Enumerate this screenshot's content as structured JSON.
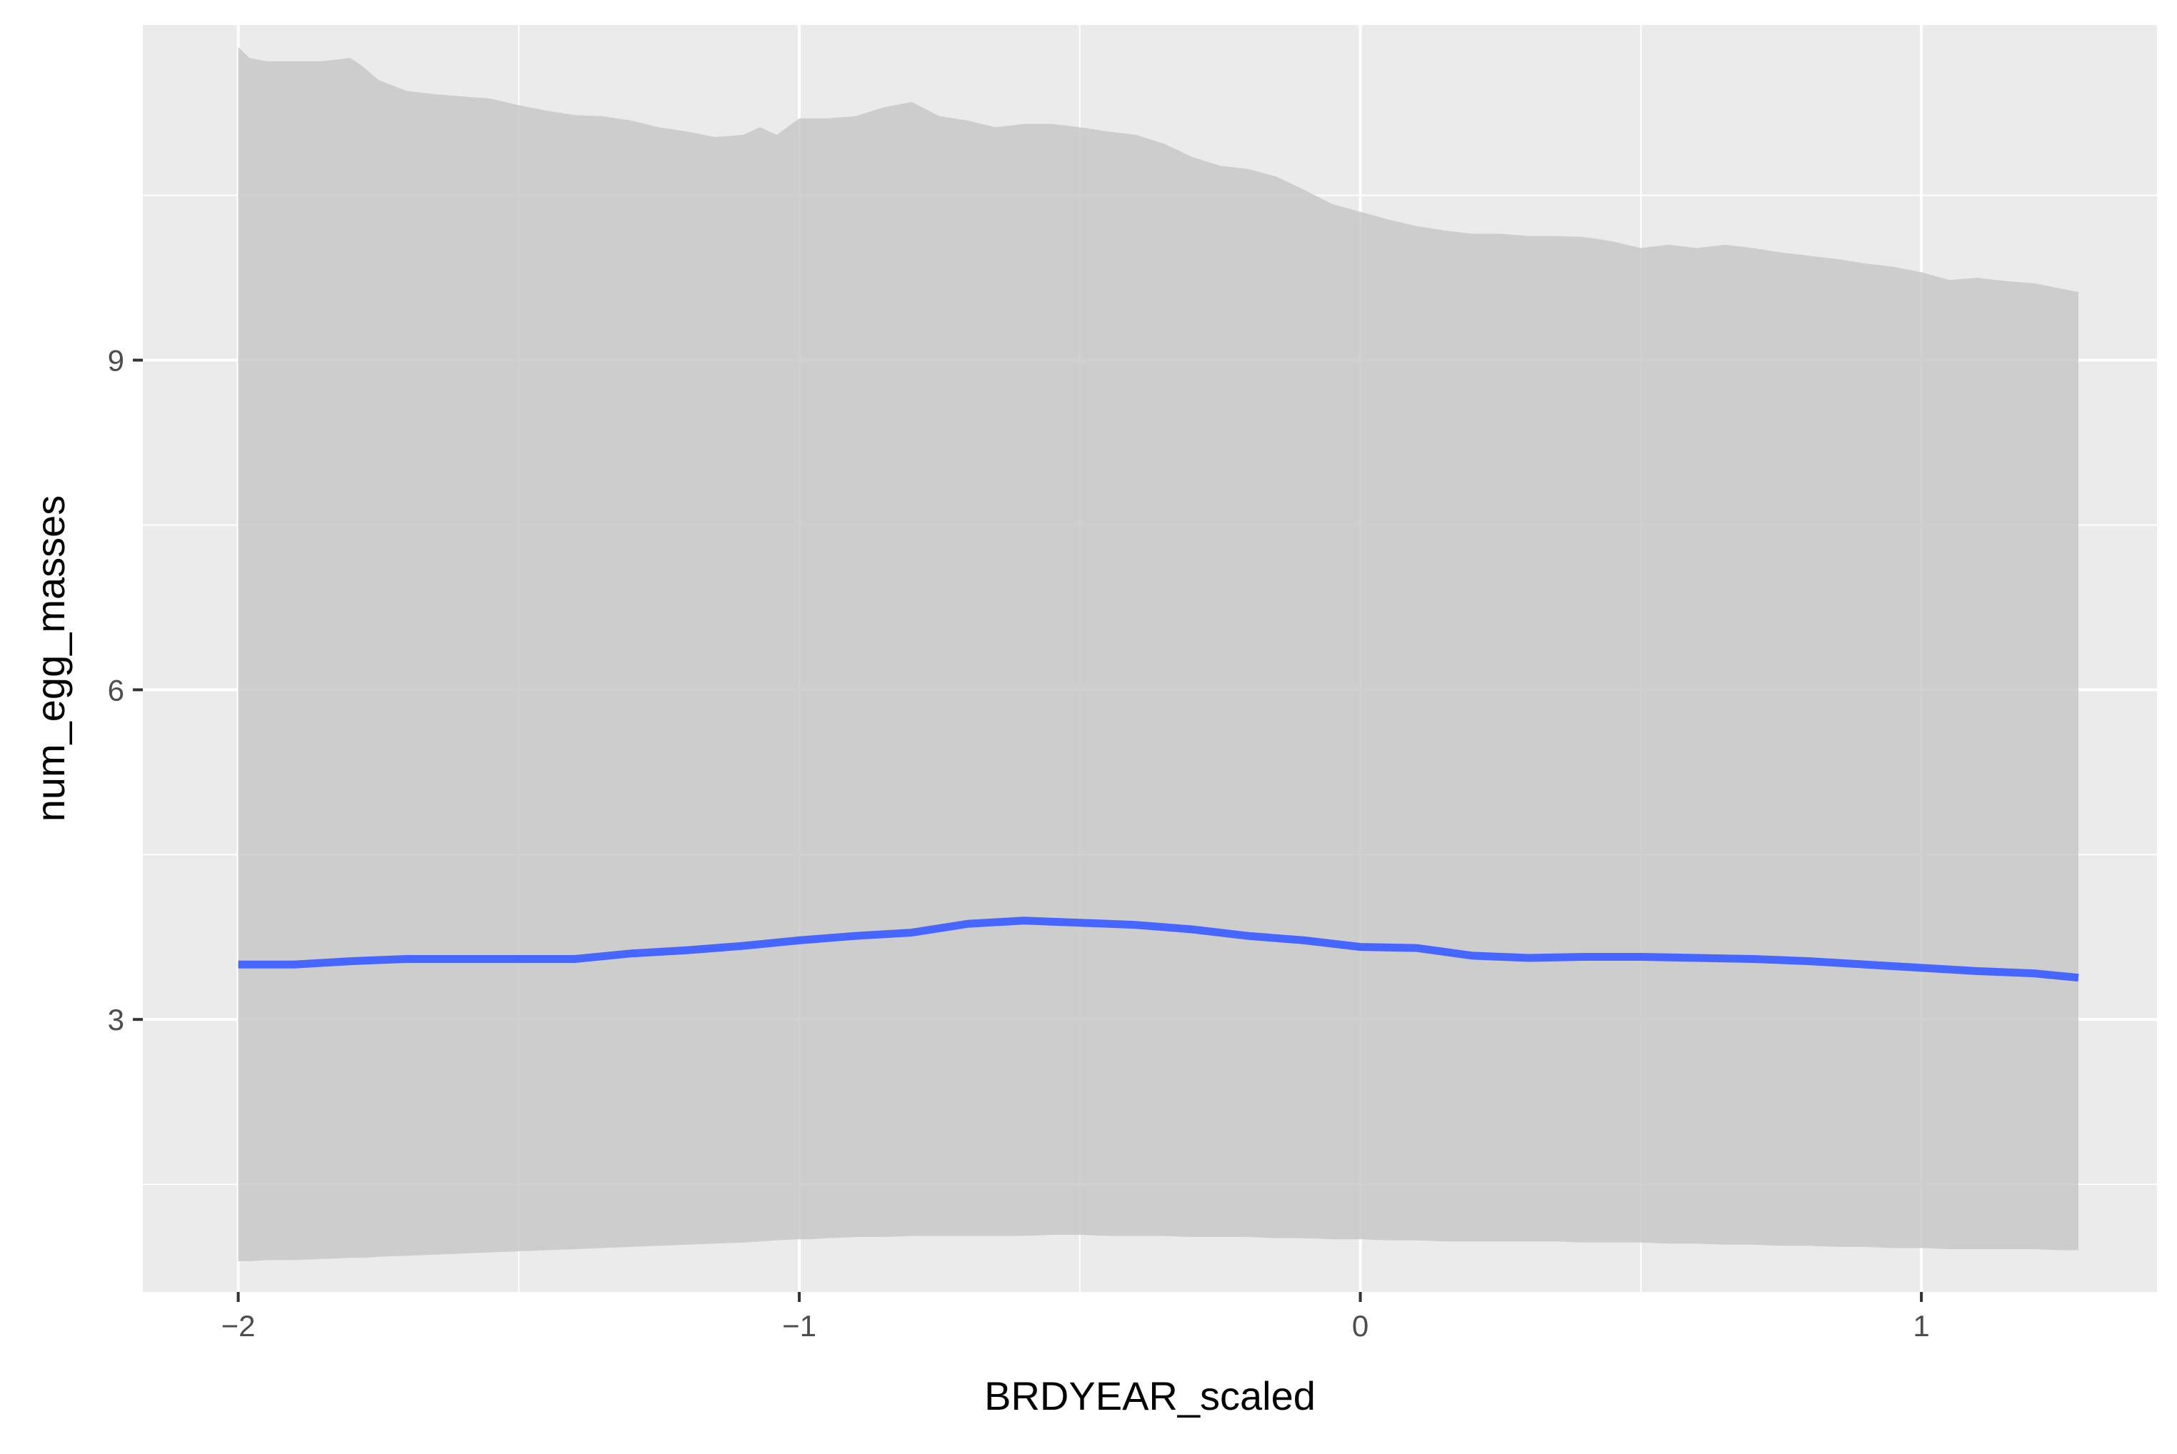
{
  "chart_data": {
    "type": "line",
    "xlabel": "BRDYEAR_scaled",
    "ylabel": "num_egg_masses",
    "xlim": [
      -2.17,
      1.42
    ],
    "ylim": [
      0.52,
      12.05
    ],
    "x_ticks": [
      -2,
      -1,
      0,
      1
    ],
    "x_tick_labels": [
      "−2",
      "−1",
      "0",
      "1"
    ],
    "y_ticks": [
      3,
      6,
      9
    ],
    "y_tick_labels": [
      "3",
      "6",
      "9"
    ],
    "grid": true,
    "legend": "none",
    "colors": {
      "panel_background": "#EBEBEB",
      "grid": "#FFFFFF",
      "ribbon": "#C8C8C8",
      "line": "#4766FF"
    },
    "series": [
      {
        "kind": "line",
        "x": [
          -2.0,
          -1.9,
          -1.8,
          -1.7,
          -1.6,
          -1.5,
          -1.4,
          -1.3,
          -1.2,
          -1.1,
          -1.0,
          -0.9,
          -0.8,
          -0.7,
          -0.6,
          -0.5,
          -0.4,
          -0.3,
          -0.2,
          -0.1,
          0.0,
          0.1,
          0.2,
          0.3,
          0.4,
          0.5,
          0.6,
          0.7,
          0.8,
          0.9,
          1.0,
          1.1,
          1.2,
          1.28
        ],
        "y": [
          3.5,
          3.5,
          3.53,
          3.55,
          3.55,
          3.55,
          3.55,
          3.6,
          3.63,
          3.67,
          3.72,
          3.76,
          3.79,
          3.87,
          3.9,
          3.88,
          3.86,
          3.82,
          3.76,
          3.72,
          3.66,
          3.65,
          3.58,
          3.56,
          3.57,
          3.57,
          3.56,
          3.55,
          3.53,
          3.5,
          3.47,
          3.44,
          3.42,
          3.38
        ]
      },
      {
        "kind": "ribbon",
        "x": [
          -2.0,
          -1.98,
          -1.95,
          -1.9,
          -1.85,
          -1.8,
          -1.78,
          -1.75,
          -1.7,
          -1.65,
          -1.6,
          -1.55,
          -1.5,
          -1.45,
          -1.4,
          -1.35,
          -1.3,
          -1.25,
          -1.2,
          -1.15,
          -1.1,
          -1.07,
          -1.04,
          -1.0,
          -0.98,
          -0.95,
          -0.9,
          -0.85,
          -0.8,
          -0.75,
          -0.7,
          -0.65,
          -0.6,
          -0.55,
          -0.5,
          -0.45,
          -0.4,
          -0.35,
          -0.3,
          -0.25,
          -0.2,
          -0.15,
          -0.1,
          -0.05,
          0.0,
          0.05,
          0.1,
          0.15,
          0.2,
          0.25,
          0.3,
          0.35,
          0.4,
          0.45,
          0.5,
          0.55,
          0.6,
          0.65,
          0.7,
          0.75,
          0.8,
          0.85,
          0.9,
          0.95,
          1.0,
          1.05,
          1.1,
          1.15,
          1.2,
          1.25,
          1.28
        ],
        "upper": [
          11.85,
          11.75,
          11.72,
          11.72,
          11.72,
          11.75,
          11.68,
          11.55,
          11.45,
          11.42,
          11.4,
          11.38,
          11.32,
          11.27,
          11.23,
          11.22,
          11.18,
          11.12,
          11.08,
          11.03,
          11.05,
          11.12,
          11.05,
          11.2,
          11.2,
          11.2,
          11.22,
          11.3,
          11.35,
          11.22,
          11.18,
          11.12,
          11.15,
          11.15,
          11.12,
          11.08,
          11.05,
          10.97,
          10.85,
          10.77,
          10.74,
          10.67,
          10.55,
          10.42,
          10.35,
          10.28,
          10.22,
          10.18,
          10.15,
          10.15,
          10.13,
          10.13,
          10.12,
          10.08,
          10.02,
          10.05,
          10.02,
          10.05,
          10.02,
          9.98,
          9.95,
          9.92,
          9.88,
          9.85,
          9.8,
          9.73,
          9.75,
          9.72,
          9.7,
          9.65,
          9.62
        ],
        "lower": [
          0.8,
          0.8,
          0.81,
          0.81,
          0.82,
          0.83,
          0.83,
          0.84,
          0.85,
          0.86,
          0.87,
          0.88,
          0.89,
          0.9,
          0.91,
          0.92,
          0.93,
          0.94,
          0.95,
          0.96,
          0.97,
          0.98,
          0.99,
          1.0,
          1.0,
          1.01,
          1.02,
          1.02,
          1.03,
          1.03,
          1.03,
          1.03,
          1.03,
          1.04,
          1.04,
          1.03,
          1.03,
          1.03,
          1.02,
          1.02,
          1.02,
          1.01,
          1.01,
          1.0,
          1.0,
          0.99,
          0.99,
          0.98,
          0.98,
          0.98,
          0.98,
          0.98,
          0.97,
          0.97,
          0.97,
          0.96,
          0.96,
          0.95,
          0.95,
          0.94,
          0.94,
          0.93,
          0.93,
          0.92,
          0.92,
          0.91,
          0.91,
          0.91,
          0.91,
          0.9,
          0.9
        ]
      }
    ]
  }
}
